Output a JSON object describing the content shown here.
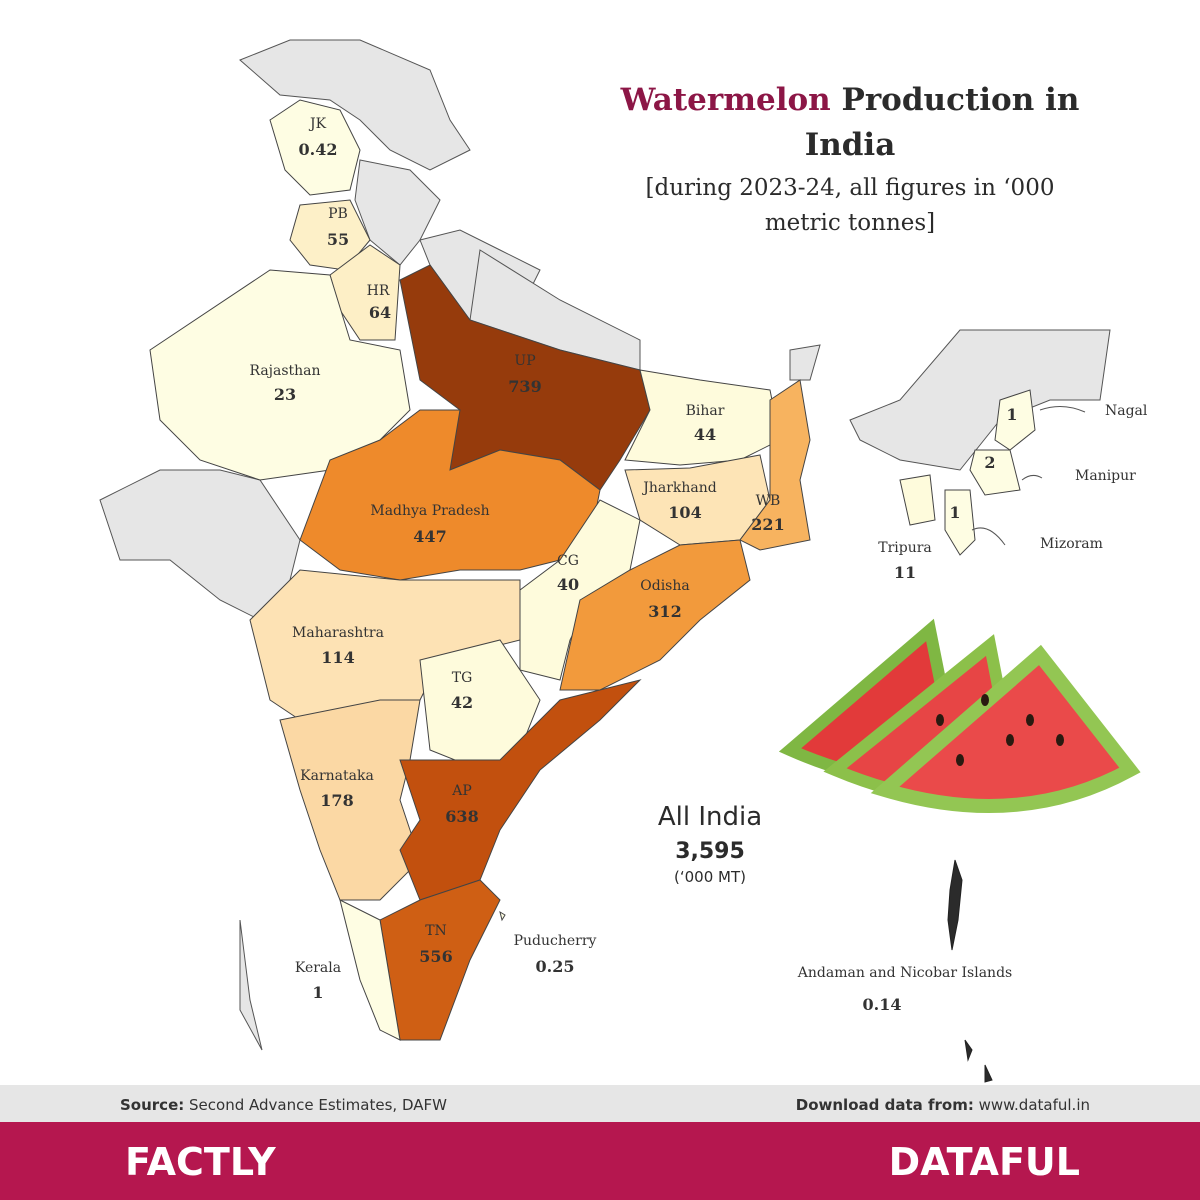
{
  "title": {
    "highlight": "Watermelon",
    "rest": "Production in",
    "line2": "India"
  },
  "subtitle": [
    "[during 2023-24,  all figures in ‘000",
    "metric tonnes]"
  ],
  "regions": [
    {
      "name": "JK",
      "value": 0.42,
      "color": "#fefde3"
    },
    {
      "name": "PB",
      "value": 55,
      "color": "#fdf0c8"
    },
    {
      "name": "HR",
      "value": 64,
      "color": "#fdefc6"
    },
    {
      "name": "Rajasthan",
      "value": 23,
      "color": "#fefde3"
    },
    {
      "name": "UP",
      "value": 739,
      "color": "#963b0c"
    },
    {
      "name": "Bihar",
      "value": 44,
      "color": "#fefbdc"
    },
    {
      "name": "Jharkhand",
      "value": 104,
      "color": "#fde4b6"
    },
    {
      "name": "WB",
      "value": 221,
      "color": "#f7b35f"
    },
    {
      "name": "Madhya Pradesh",
      "value": 447,
      "color": "#ee8a2b"
    },
    {
      "name": "CG",
      "value": 40,
      "color": "#fefbdc"
    },
    {
      "name": "Odisha",
      "value": 312,
      "color": "#f29a3c"
    },
    {
      "name": "Maharashtra",
      "value": 114,
      "color": "#fde2b4"
    },
    {
      "name": "TG",
      "value": 42,
      "color": "#fefbdc"
    },
    {
      "name": "Karnataka",
      "value": 178,
      "color": "#fbd8a4"
    },
    {
      "name": "AP",
      "value": 638,
      "color": "#c2500e"
    },
    {
      "name": "TN",
      "value": 556,
      "color": "#cf5f14"
    },
    {
      "name": "Kerala",
      "value": 1,
      "color": "#fefde3"
    },
    {
      "name": "Puducherry",
      "value": 0.25,
      "color": "#fefde3"
    },
    {
      "name": "Nagal",
      "value": 1,
      "color": "#fefde3"
    },
    {
      "name": "Manipur",
      "value": 2,
      "color": "#fefde3"
    },
    {
      "name": "Mizoram",
      "value": 1,
      "color": "#fefde3"
    },
    {
      "name": "Tripura",
      "value": 11,
      "color": "#fefbdc"
    },
    {
      "name": "Andaman and Nicobar Islands",
      "value": 0.14,
      "color": "#fefde3"
    }
  ],
  "total": {
    "label": "All India",
    "value": "3,595",
    "unit": "(‘000 MT)"
  },
  "footer": {
    "source_label": "Source:",
    "source": "Second Advance Estimates, DAFW",
    "download_label": "Download data from:",
    "download": "www.dataful.in"
  },
  "brands": [
    "FACTLY",
    "DATAFUL"
  ]
}
